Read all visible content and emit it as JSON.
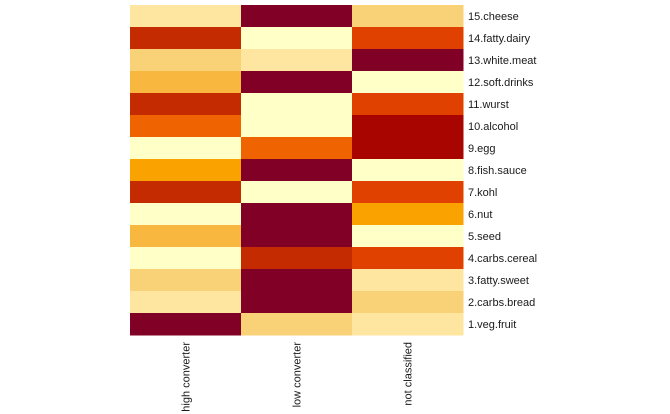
{
  "chart_data": {
    "type": "heatmap",
    "x_categories": [
      "high converter",
      "low converter",
      "not classified"
    ],
    "y_categories": [
      "15.cheese",
      "14.fatty.dairy",
      "13.white.meat",
      "12.soft.drinks",
      "11.wurst",
      "10.alcohol",
      "9.egg",
      "8.fish.sauce",
      "7.kohl",
      "6.nut",
      "5.seed",
      "4.carbs.cereal",
      "3.fatty.sweet",
      "2.carbs.bread",
      "1.veg.fruit"
    ],
    "palette": [
      "#FFFFC8",
      "#FEE6A0",
      "#F9D278",
      "#F8B840",
      "#F9A200",
      "#EF6300",
      "#E04000",
      "#C42B00",
      "#A80500",
      "#800026"
    ],
    "cell_colors": [
      [
        "#FEE6A0",
        "#800026",
        "#F9D278"
      ],
      [
        "#C42B00",
        "#FFFFC8",
        "#E04000"
      ],
      [
        "#F9D278",
        "#FEE6A0",
        "#800026"
      ],
      [
        "#F8B840",
        "#800026",
        "#FFFFC8"
      ],
      [
        "#C42B00",
        "#FFFFC8",
        "#E04000"
      ],
      [
        "#EF6300",
        "#FFFFC8",
        "#A80500"
      ],
      [
        "#FFFFC8",
        "#EF6300",
        "#A80500"
      ],
      [
        "#F9A200",
        "#800026",
        "#FFFFC8"
      ],
      [
        "#C42B00",
        "#FFFFC8",
        "#E04000"
      ],
      [
        "#FFFFC8",
        "#800026",
        "#F9A200"
      ],
      [
        "#F8B840",
        "#800026",
        "#FFFFC8"
      ],
      [
        "#FFFFC8",
        "#C42B00",
        "#E04000"
      ],
      [
        "#F9D278",
        "#800026",
        "#FEE6A0"
      ],
      [
        "#FEE6A0",
        "#800026",
        "#F9D278"
      ],
      [
        "#800026",
        "#F9D278",
        "#FEE6A0"
      ]
    ],
    "title": "",
    "xlabel": "",
    "ylabel": "",
    "legend": "none",
    "grid": false
  }
}
